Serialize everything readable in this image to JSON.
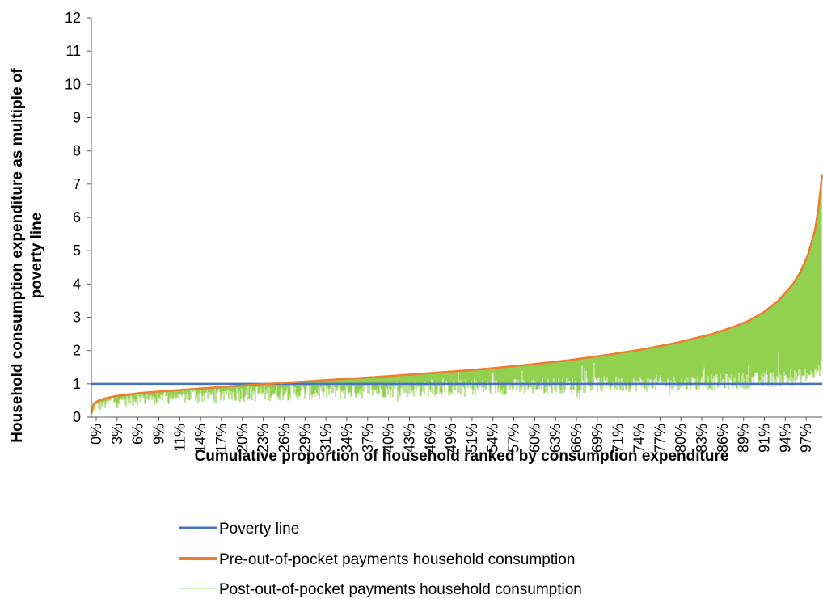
{
  "chart_data": {
    "type": "area",
    "xlabel": "Cumulative proportion of household ranked by consumption expenditure",
    "ylabel_lines": [
      "Household consumption expenditure as multiple of",
      "poverty line"
    ],
    "ylim": [
      0,
      12
    ],
    "yticks": [
      "0",
      "1",
      "2",
      "3",
      "4",
      "5",
      "6",
      "7",
      "8",
      "9",
      "10",
      "11",
      "12"
    ],
    "xticks": [
      "0%",
      "3%",
      "6%",
      "9%",
      "11%",
      "14%",
      "17%",
      "20%",
      "23%",
      "26%",
      "29%",
      "31%",
      "34%",
      "37%",
      "40%",
      "43%",
      "46%",
      "49%",
      "51%",
      "54%",
      "57%",
      "60%",
      "63%",
      "66%",
      "69%",
      "71%",
      "74%",
      "77%",
      "80%",
      "83%",
      "86%",
      "89%",
      "91%",
      "94%",
      "97%"
    ],
    "xtick_values": [
      0,
      3,
      6,
      9,
      11,
      14,
      17,
      20,
      23,
      26,
      29,
      31,
      34,
      37,
      40,
      43,
      46,
      49,
      51,
      54,
      57,
      60,
      63,
      66,
      69,
      71,
      74,
      77,
      80,
      83,
      86,
      89,
      91,
      94,
      97
    ],
    "x": [
      0,
      0.3,
      1,
      2,
      3,
      5,
      7,
      10,
      15,
      20,
      25,
      30,
      35,
      40,
      45,
      50,
      55,
      60,
      65,
      70,
      75,
      80,
      85,
      88,
      90,
      92,
      94,
      96,
      97,
      98,
      99,
      99.5,
      100
    ],
    "series": [
      {
        "name": "Poverty line",
        "color": "#4472C4",
        "values": [
          1,
          1,
          1,
          1,
          1,
          1,
          1,
          1,
          1,
          1,
          1,
          1,
          1,
          1,
          1,
          1,
          1,
          1,
          1,
          1,
          1,
          1,
          1,
          1,
          1,
          1,
          1,
          1,
          1,
          1,
          1,
          1,
          1
        ]
      },
      {
        "name": "Pre-out-of-pocket payments household consumption",
        "color": "#ED7D31",
        "values": [
          0.1,
          0.4,
          0.5,
          0.57,
          0.62,
          0.68,
          0.73,
          0.78,
          0.86,
          0.94,
          1.01,
          1.08,
          1.15,
          1.22,
          1.3,
          1.38,
          1.47,
          1.58,
          1.7,
          1.85,
          2.02,
          2.23,
          2.5,
          2.72,
          2.9,
          3.15,
          3.5,
          4.0,
          4.35,
          4.85,
          5.6,
          6.3,
          7.3
        ]
      },
      {
        "name": "Post-out-of-pocket payments household consumption",
        "color": "#92D050",
        "values": [
          0.05,
          0.3,
          0.4,
          0.45,
          0.5,
          0.55,
          0.58,
          0.62,
          0.66,
          0.7,
          0.73,
          0.76,
          0.79,
          0.82,
          0.85,
          0.88,
          0.9,
          0.93,
          0.96,
          0.98,
          1.0,
          1.02,
          1.05,
          1.07,
          1.1,
          1.12,
          1.15,
          1.18,
          1.2,
          1.25,
          1.3,
          1.4,
          1.5
        ]
      }
    ],
    "legend_position": "bottom-center",
    "grid": false
  }
}
